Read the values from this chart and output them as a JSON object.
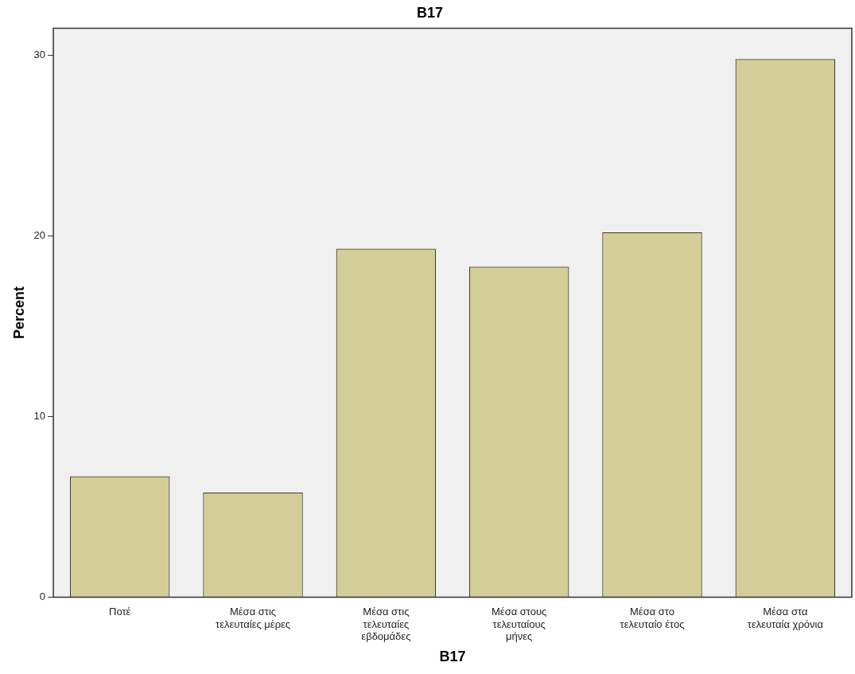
{
  "chart_data": {
    "type": "bar",
    "title": "B17",
    "xlabel": "B17",
    "ylabel": "Percent",
    "categories": [
      "Ποτέ",
      "Μέσα στις τελευταίες μέρες",
      "Μέσα στις τελευταίες εβδομάδες",
      "Μέσα στους τελευταίους μήνες",
      "Μέσα στο τελευταίο έτος",
      "Μέσα στα τελευταία χρόνια"
    ],
    "values": [
      6.7,
      5.8,
      19.3,
      18.3,
      20.2,
      29.8
    ],
    "color": "#d3ce97",
    "ylim": [
      0,
      31.5
    ],
    "yticks": [
      0,
      10,
      20,
      30
    ],
    "grid": false,
    "legend": false
  }
}
